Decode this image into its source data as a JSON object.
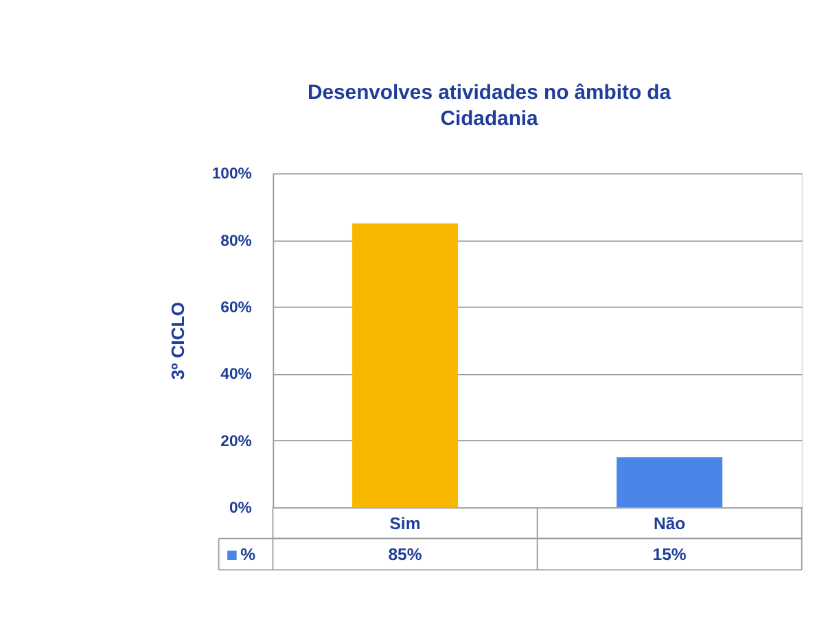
{
  "chart_data": {
    "type": "bar",
    "title": "Desenvolves atividades no âmbito da Cidadania",
    "ylabel": "3º CICLO",
    "categories": [
      "Sim",
      "Não"
    ],
    "series": [
      {
        "name": "%",
        "color": "#4a86e8",
        "colors": [
          "#f9b800",
          "#4a86e8"
        ],
        "values": [
          85,
          15
        ],
        "value_labels": [
          "85%",
          "15%"
        ]
      }
    ],
    "ylim": [
      0,
      100
    ],
    "yticks": [
      {
        "value": 0,
        "label": "0%"
      },
      {
        "value": 20,
        "label": "20%"
      },
      {
        "value": 40,
        "label": "40%"
      },
      {
        "value": 60,
        "label": "60%"
      },
      {
        "value": 80,
        "label": "80%"
      },
      {
        "value": 100,
        "label": "100%"
      }
    ],
    "grid": "y",
    "legend": "bottom"
  }
}
